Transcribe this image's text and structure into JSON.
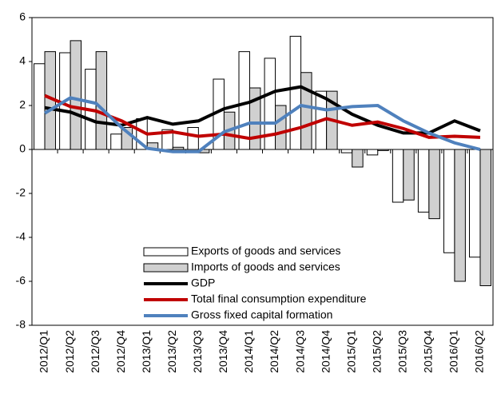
{
  "chart_data": {
    "type": "bar-line",
    "categories": [
      "2012/Q1",
      "2012/Q2",
      "2012/Q3",
      "2012/Q4",
      "2013/Q1",
      "2013/Q2",
      "2013/Q3",
      "2013/Q4",
      "2014/Q1",
      "2014/Q2",
      "2014/Q3",
      "2014/Q4",
      "2015/Q1",
      "2015/Q2",
      "2015/Q3",
      "2015/Q4",
      "2016/Q1",
      "2016/Q2"
    ],
    "series": [
      {
        "name": "Exports of goods and services",
        "kind": "bar",
        "color": "#ffffff",
        "values": [
          3.9,
          4.4,
          3.65,
          0.7,
          1.4,
          0.9,
          1.0,
          3.2,
          4.45,
          4.15,
          5.15,
          2.65,
          -0.15,
          -0.25,
          -2.4,
          -2.85,
          -4.7,
          -4.9
        ]
      },
      {
        "name": "Imports of goods and services",
        "kind": "bar",
        "color": "#d0d0d0",
        "values": [
          4.45,
          4.95,
          4.45,
          1.0,
          0.3,
          0.1,
          -0.15,
          1.7,
          2.8,
          2.0,
          3.5,
          2.65,
          -0.8,
          -0.05,
          -2.3,
          -3.15,
          -6.0,
          -6.2
        ]
      },
      {
        "name": "GDP",
        "kind": "line",
        "color": "#000000",
        "values": [
          1.9,
          1.7,
          1.25,
          1.1,
          1.45,
          1.15,
          1.3,
          1.85,
          2.15,
          2.65,
          2.85,
          2.3,
          1.6,
          1.1,
          0.75,
          0.75,
          1.3,
          0.85
        ]
      },
      {
        "name": "Total final consumption expenditure",
        "kind": "line",
        "color": "#c00000",
        "values": [
          2.45,
          1.95,
          1.75,
          1.3,
          0.7,
          0.8,
          0.6,
          0.7,
          0.5,
          0.7,
          1.0,
          1.4,
          1.1,
          1.25,
          0.95,
          0.55,
          0.6,
          0.55
        ]
      },
      {
        "name": "Gross fixed capital formation",
        "kind": "line",
        "color": "#4f81bd",
        "values": [
          1.65,
          2.35,
          2.1,
          1.0,
          0.05,
          -0.1,
          -0.1,
          0.8,
          1.2,
          1.2,
          2.0,
          1.8,
          1.95,
          2.0,
          1.3,
          0.75,
          0.3,
          0.0
        ]
      }
    ],
    "ylim": [
      -8,
      6
    ],
    "yticks": [
      -8,
      -6,
      -4,
      -2,
      0,
      2,
      4,
      6
    ],
    "grid": false,
    "legend": "bottom-center"
  }
}
